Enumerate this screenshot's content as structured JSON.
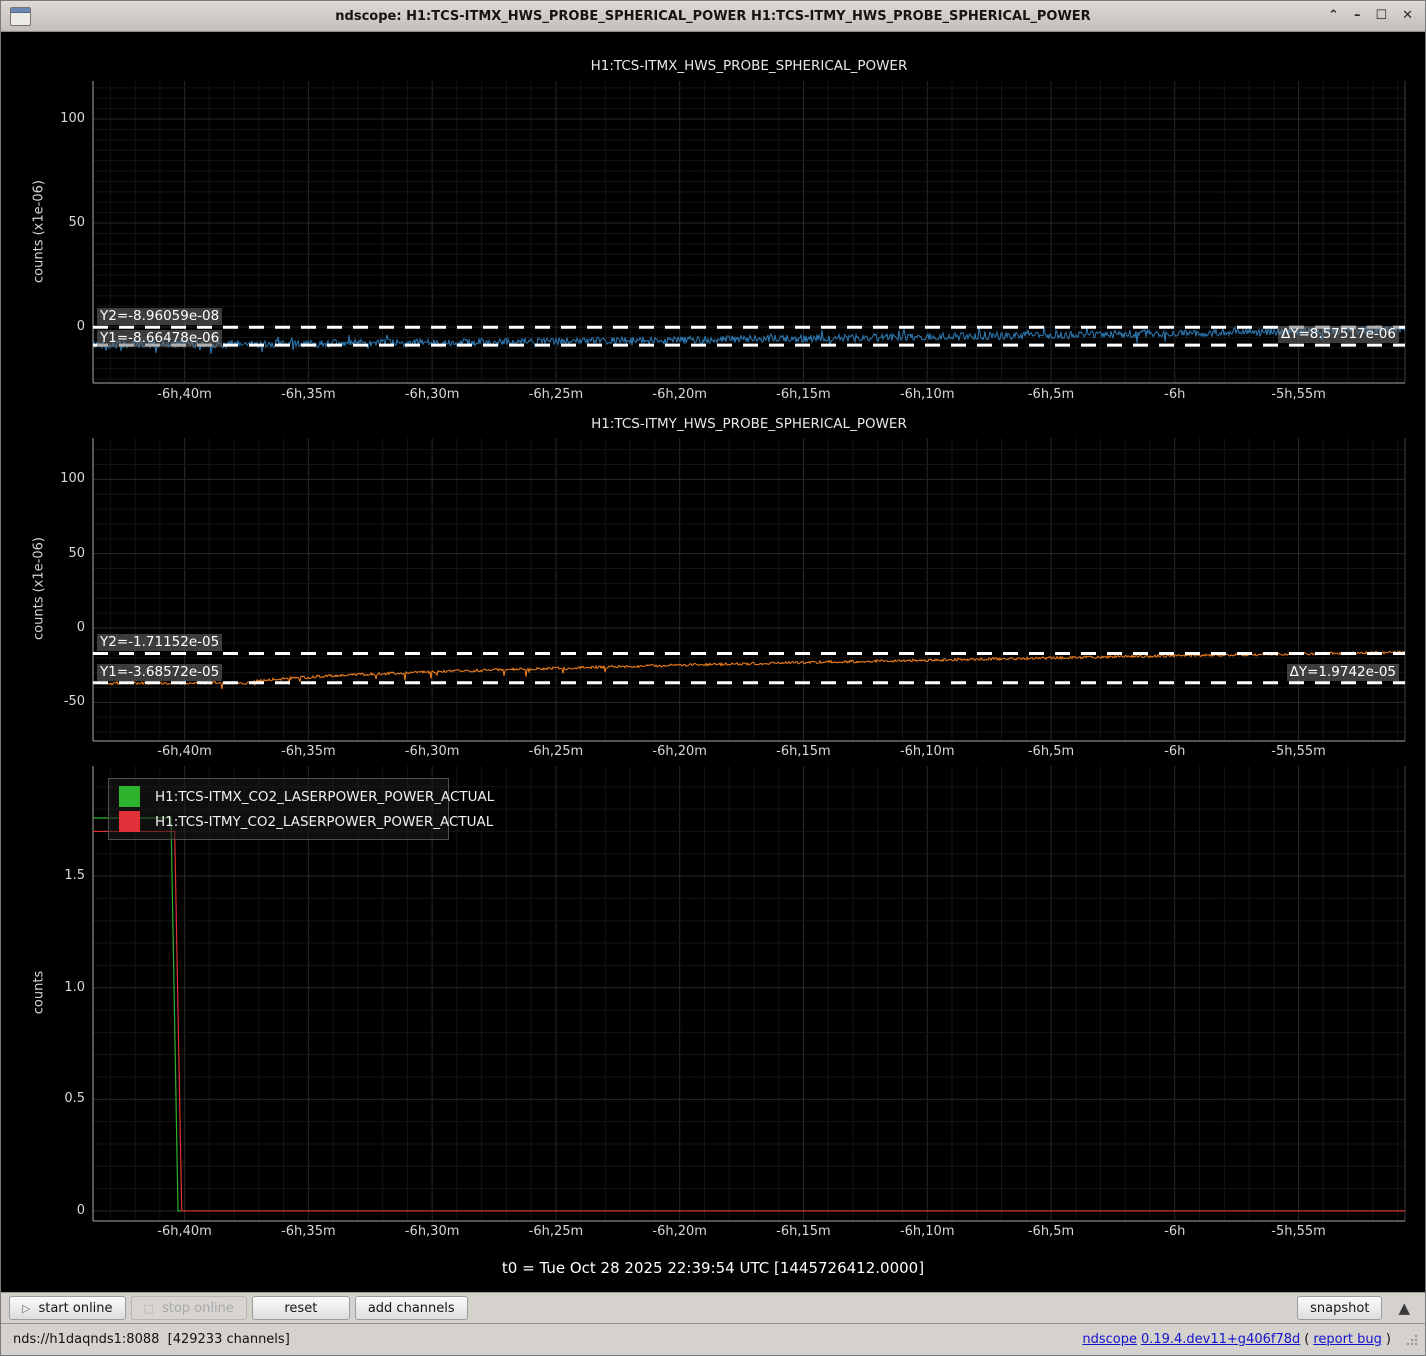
{
  "window": {
    "title": "ndscope: H1:TCS-ITMX_HWS_PROBE_SPHERICAL_POWER H1:TCS-ITMY_HWS_PROBE_SPHERICAL_POWER",
    "controls": {
      "shade": "⌃",
      "minimize": "–",
      "maximize": "☐",
      "close": "✕"
    }
  },
  "t0_label": "t0 = Tue Oct 28 2025 22:39:54 UTC [1445726412.0000]",
  "toolbar": {
    "buttons": [
      {
        "label": "start online",
        "icon_glyph": "▷",
        "enabled": true
      },
      {
        "label": "stop online",
        "icon_glyph": "□",
        "enabled": false
      },
      {
        "label": "reset",
        "enabled": true
      },
      {
        "label": "add channels",
        "enabled": true
      }
    ],
    "snapshot_label": "snapshot",
    "expand_glyph": "▲"
  },
  "statusbar": {
    "server": "nds://h1daqnds1:8088  [429233 channels]",
    "app_link": "ndscope",
    "version_link": "0.19.4.dev11+g406f78d",
    "bug_open": "(",
    "bug_link": "report bug",
    "bug_close": ")"
  },
  "chart_data": [
    {
      "type": "line",
      "title": "H1:TCS-ITMX_HWS_PROBE_SPHERICAL_POWER",
      "ylabel": "counts (x1e-06)",
      "ylim": [
        -26.9,
        118.3
      ],
      "yticks": [
        {
          "value": 0,
          "label": "0"
        },
        {
          "value": 50,
          "label": "50"
        },
        {
          "value": 100,
          "label": "100"
        }
      ],
      "y_minor_step": 5,
      "xlim_minutes": [
        -403.7,
        -350.7
      ],
      "xticks": [
        {
          "value": -400,
          "label": "-6h,40m"
        },
        {
          "value": -395,
          "label": "-6h,35m"
        },
        {
          "value": -390,
          "label": "-6h,30m"
        },
        {
          "value": -385,
          "label": "-6h,25m"
        },
        {
          "value": -380,
          "label": "-6h,20m"
        },
        {
          "value": -375,
          "label": "-6h,15m"
        },
        {
          "value": -370,
          "label": "-6h,10m"
        },
        {
          "value": -365,
          "label": "-6h,5m"
        },
        {
          "value": -360,
          "label": "-6h"
        },
        {
          "value": -355,
          "label": "-5h,55m"
        }
      ],
      "grid": true,
      "series": [
        {
          "name": "H1:TCS-ITMX_HWS_PROBE_SPHERICAL_POWER",
          "color": "#2d7bb5",
          "kind": "noisy",
          "start": -8.5,
          "end": -1.3,
          "shape": 1.4,
          "noise": 1.8,
          "spike_chance": 0.05,
          "spike_max": 3.5,
          "seed": 42
        }
      ],
      "cursors": {
        "y1_value": -8.66478,
        "y2_value": -0.0896059,
        "y1_label": "Y1=-8.66478e-06",
        "y2_label": "Y2=-8.96059e-08",
        "dy_label": "ΔY=8.57517e-06"
      }
    },
    {
      "type": "line",
      "title": "H1:TCS-ITMY_HWS_PROBE_SPHERICAL_POWER",
      "ylabel": "counts (x1e-06)",
      "ylim": [
        -76,
        127.8
      ],
      "yticks": [
        {
          "value": -50,
          "label": "-50"
        },
        {
          "value": 0,
          "label": "0"
        },
        {
          "value": 50,
          "label": "50"
        },
        {
          "value": 100,
          "label": "100"
        }
      ],
      "y_minor_step": 10,
      "xlim_minutes": [
        -403.7,
        -350.7
      ],
      "xticks": [
        {
          "value": -400,
          "label": "-6h,40m"
        },
        {
          "value": -395,
          "label": "-6h,35m"
        },
        {
          "value": -390,
          "label": "-6h,30m"
        },
        {
          "value": -385,
          "label": "-6h,25m"
        },
        {
          "value": -380,
          "label": "-6h,20m"
        },
        {
          "value": -375,
          "label": "-6h,15m"
        },
        {
          "value": -370,
          "label": "-6h,10m"
        },
        {
          "value": -365,
          "label": "-6h,5m"
        },
        {
          "value": -360,
          "label": "-6h"
        },
        {
          "value": -355,
          "label": "-5h,55m"
        }
      ],
      "grid": true,
      "series": [
        {
          "name": "H1:TCS-ITMY_HWS_PROBE_SPHERICAL_POWER",
          "color": "#f5821f",
          "kind": "rise",
          "start": -37.0,
          "end": -16.3,
          "flat_until": 0.12,
          "shape": 0.55,
          "noise": 0.9,
          "spike_chance": 0.04,
          "spike_max": 6,
          "spike_until": 0.45,
          "seed": 1337
        }
      ],
      "cursors": {
        "y1_value": -36.8572,
        "y2_value": -17.1152,
        "y1_label": "Y1=-3.68572e-05",
        "y2_label": "Y2=-1.71152e-05",
        "dy_label": "ΔY=1.9742e-05"
      }
    },
    {
      "type": "line",
      "title": "",
      "ylabel": "counts",
      "ylim": [
        -0.045,
        1.993
      ],
      "yticks": [
        {
          "value": 0,
          "label": "0"
        },
        {
          "value": 0.5,
          "label": "0.5"
        },
        {
          "value": 1.0,
          "label": "1.0"
        },
        {
          "value": 1.5,
          "label": "1.5"
        }
      ],
      "y_minor_step": 0.1,
      "xlim_minutes": [
        -403.7,
        -350.7
      ],
      "xticks": [
        {
          "value": -400,
          "label": "-6h,40m"
        },
        {
          "value": -395,
          "label": "-6h,35m"
        },
        {
          "value": -390,
          "label": "-6h,30m"
        },
        {
          "value": -385,
          "label": "-6h,25m"
        },
        {
          "value": -380,
          "label": "-6h,20m"
        },
        {
          "value": -375,
          "label": "-6h,15m"
        },
        {
          "value": -370,
          "label": "-6h,10m"
        },
        {
          "value": -365,
          "label": "-6h,5m"
        },
        {
          "value": -360,
          "label": "-6h"
        },
        {
          "value": -355,
          "label": "-5h,55m"
        }
      ],
      "grid": true,
      "legend_position": "top-left",
      "series": [
        {
          "name": "H1:TCS-ITMX_CO2_LASERPOWER_POWER_ACTUAL",
          "color": "#2eb32e",
          "kind": "step",
          "level_before": 1.76,
          "level_after": 0.0,
          "step_minute": -400.55
        },
        {
          "name": "H1:TCS-ITMY_CO2_LASERPOWER_POWER_ACTUAL",
          "color": "#e03238",
          "kind": "step",
          "level_before": 1.7,
          "level_after": 0.0,
          "step_minute": -400.4
        }
      ]
    }
  ]
}
